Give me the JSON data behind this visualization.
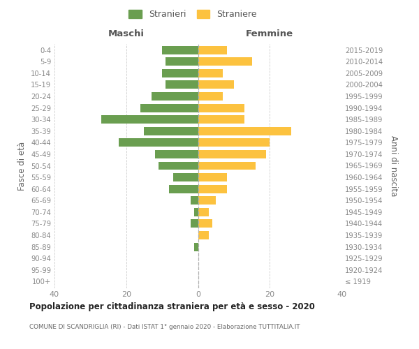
{
  "age_groups": [
    "100+",
    "95-99",
    "90-94",
    "85-89",
    "80-84",
    "75-79",
    "70-74",
    "65-69",
    "60-64",
    "55-59",
    "50-54",
    "45-49",
    "40-44",
    "35-39",
    "30-34",
    "25-29",
    "20-24",
    "15-19",
    "10-14",
    "5-9",
    "0-4"
  ],
  "birth_years": [
    "≤ 1919",
    "1920-1924",
    "1925-1929",
    "1930-1934",
    "1935-1939",
    "1940-1944",
    "1945-1949",
    "1950-1954",
    "1955-1959",
    "1960-1964",
    "1965-1969",
    "1970-1974",
    "1975-1979",
    "1980-1984",
    "1985-1989",
    "1990-1994",
    "1995-1999",
    "2000-2004",
    "2005-2009",
    "2010-2014",
    "2015-2019"
  ],
  "maschi": [
    0,
    0,
    0,
    1,
    0,
    2,
    1,
    2,
    8,
    7,
    11,
    12,
    22,
    15,
    27,
    16,
    13,
    9,
    10,
    9,
    10
  ],
  "femmine": [
    0,
    0,
    0,
    0,
    3,
    4,
    3,
    5,
    8,
    8,
    16,
    19,
    20,
    26,
    13,
    13,
    7,
    10,
    7,
    15,
    8
  ],
  "maschi_color": "#6a9e50",
  "femmine_color": "#fcc23f",
  "background_color": "#ffffff",
  "grid_color": "#cccccc",
  "title": "Popolazione per cittadinanza straniera per età e sesso - 2020",
  "subtitle": "COMUNE DI SCANDRIGLIA (RI) - Dati ISTAT 1° gennaio 2020 - Elaborazione TUTTITALIA.IT",
  "header_left": "Maschi",
  "header_right": "Femmine",
  "ylabel_left": "Fasce di età",
  "ylabel_right": "Anni di nascita",
  "legend_stranieri": "Stranieri",
  "legend_straniere": "Straniere",
  "xlim": 40,
  "bar_height": 0.72
}
